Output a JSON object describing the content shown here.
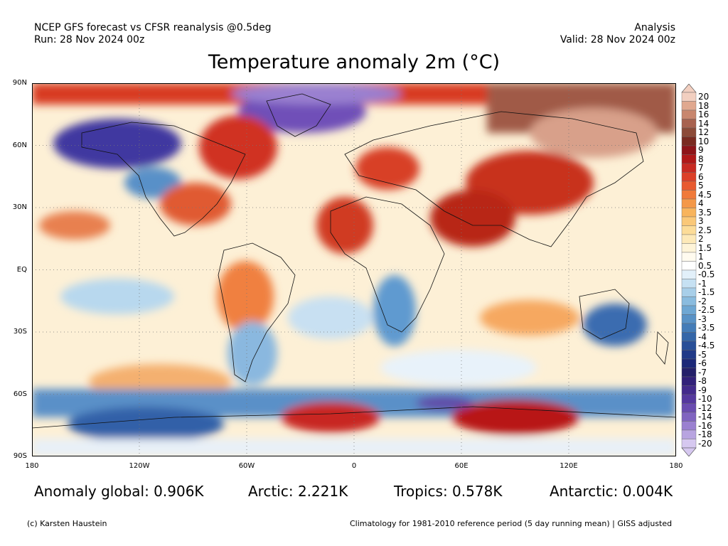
{
  "header": {
    "model_line": "NCEP GFS forecast vs CFSR reanalysis @0.5deg",
    "run_line": "Run: 28 Nov 2024 00z",
    "type_line": "Analysis",
    "valid_line": "Valid: 28 Nov 2024 00z"
  },
  "title": "Temperature anomaly 2m (°C)",
  "axes": {
    "lat_labels": [
      "90N",
      "60N",
      "30N",
      "EQ",
      "30S",
      "60S",
      "90S"
    ],
    "lon_labels": [
      "180",
      "120W",
      "60W",
      "0",
      "60E",
      "120E",
      "180"
    ]
  },
  "colorbar": {
    "labels": [
      "20",
      "18",
      "16",
      "14",
      "12",
      "10",
      "9",
      "8",
      "7",
      "6",
      "5",
      "4.5",
      "4",
      "3.5",
      "3",
      "2.5",
      "2",
      "1.5",
      "1",
      "0.5",
      "-0.5",
      "-1",
      "-1.5",
      "-2",
      "-2.5",
      "-3",
      "-3.5",
      "-4",
      "-4.5",
      "-5",
      "-6",
      "-7",
      "-8",
      "-9",
      "-10",
      "-12",
      "-14",
      "-16",
      "-18",
      "-20"
    ],
    "colors": [
      "#f2cfc0",
      "#e0a88f",
      "#c8866e",
      "#a8624f",
      "#8c4a38",
      "#7a2a20",
      "#8e1418",
      "#b01818",
      "#c82a22",
      "#dc4028",
      "#e85a30",
      "#f07a3a",
      "#f49848",
      "#f8b45c",
      "#fac878",
      "#fcdc98",
      "#fde9b8",
      "#fef4d8",
      "#fffbef",
      "#ffffff",
      "#e2f0fa",
      "#c6e1f3",
      "#a8cfe9",
      "#8abcdf",
      "#6ea7d3",
      "#5892c6",
      "#447cb8",
      "#3466a8",
      "#284f98",
      "#213a88",
      "#1c2878",
      "#24206a",
      "#32217a",
      "#432a8c",
      "#55389e",
      "#6a4cb0",
      "#8064c0",
      "#9a80d0",
      "#b8a4e0",
      "#d6c8f0"
    ]
  },
  "stats": {
    "global": "Anomaly global: 0.906K",
    "arctic": "Arctic: 2.221K",
    "tropics": "Tropics: 0.578K",
    "antarctic": "Antarctic: 0.004K"
  },
  "footer": {
    "credit": "(c) Karsten Haustein",
    "climatology": "Climatology for 1981-2010 reference period (5 day running mean) | GISS adjusted"
  }
}
